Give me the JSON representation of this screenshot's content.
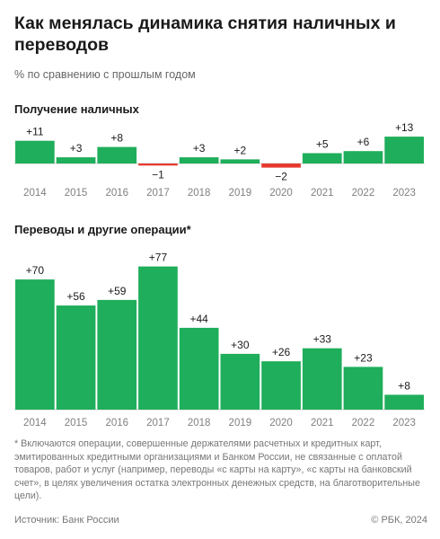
{
  "header": {
    "title": "Как менялась динамика снятия наличных и переводов",
    "subtitle": "% по сравнению с прошлым годом"
  },
  "colors": {
    "positive": "#1fae5b",
    "negative": "#e53b2f",
    "axis": "#cfcfcf"
  },
  "chart_data": [
    {
      "type": "bar",
      "title": "Получение наличных",
      "categories": [
        "2014",
        "2015",
        "2016",
        "2017",
        "2018",
        "2019",
        "2020",
        "2021",
        "2022",
        "2023"
      ],
      "values": [
        11,
        3,
        8,
        -1,
        3,
        2,
        -2,
        5,
        6,
        13
      ],
      "data_labels": [
        "+11",
        "+3",
        "+8",
        "−1",
        "+3",
        "+2",
        "−2",
        "+5",
        "+6",
        "+13"
      ]
    },
    {
      "type": "bar",
      "title": "Переводы и другие операции*",
      "categories": [
        "2014",
        "2015",
        "2016",
        "2017",
        "2018",
        "2019",
        "2020",
        "2021",
        "2022",
        "2023"
      ],
      "values": [
        70,
        56,
        59,
        77,
        44,
        30,
        26,
        33,
        23,
        8
      ],
      "data_labels": [
        "+70",
        "+56",
        "+59",
        "+77",
        "+44",
        "+30",
        "+26",
        "+33",
        "+23",
        "+8"
      ]
    }
  ],
  "footnote": "* Включаются операции, совершенные держателями расчетных и кредитных карт, эмитированных кредитными организациями и Банком России, не связанные с оплатой товаров, работ и услуг (например, переводы «с карты на карту», «с карты на банковский счет», в целях увеличения остатка электронных денежных средств, на благотворительные цели).",
  "footer": {
    "source": "Источник: Банк России",
    "copyright": "© РБК, 2024"
  }
}
